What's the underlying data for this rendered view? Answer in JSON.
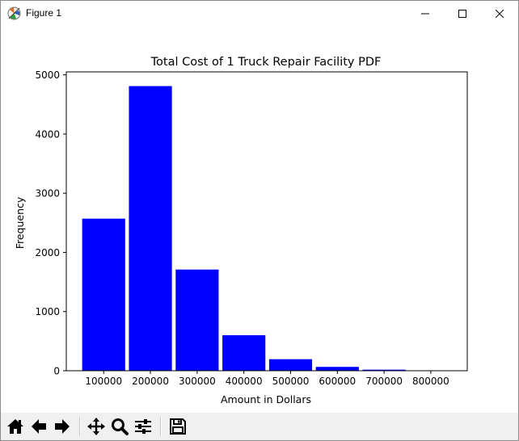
{
  "window": {
    "title": "Figure 1",
    "icon": "matplotlib-figure-icon",
    "controls": [
      "minimize-icon",
      "maximize-icon",
      "close-icon"
    ]
  },
  "toolbar": {
    "buttons": [
      {
        "name": "home-button",
        "icon": "home-icon"
      },
      {
        "name": "back-button",
        "icon": "arrow-left-icon"
      },
      {
        "name": "forward-button",
        "icon": "arrow-right-icon"
      },
      {
        "name": "pan-button",
        "icon": "move-arrows-icon"
      },
      {
        "name": "zoom-button",
        "icon": "magnifier-icon"
      },
      {
        "name": "configure-subplots-button",
        "icon": "sliders-icon"
      },
      {
        "name": "save-button",
        "icon": "floppy-disk-icon"
      }
    ]
  },
  "chart_data": {
    "type": "bar",
    "title": "Total Cost of 1 Truck Repair Facility PDF",
    "xlabel": "Amount in Dollars",
    "ylabel": "Frequency",
    "bar_color": "#0000ff",
    "bin_width": 50000,
    "bins": [
      {
        "center": 100000,
        "value": 2570
      },
      {
        "center": 200000,
        "value": 4810
      },
      {
        "center": 300000,
        "value": 1710
      },
      {
        "center": 400000,
        "value": 600
      },
      {
        "center": 500000,
        "value": 195
      },
      {
        "center": 600000,
        "value": 65
      },
      {
        "center": 700000,
        "value": 18
      },
      {
        "center": 800000,
        "value": 5
      }
    ],
    "xlim": [
      20000,
      878000
    ],
    "ylim": [
      0,
      5050
    ],
    "xticks": [
      "100000",
      "200000",
      "300000",
      "400000",
      "500000",
      "600000",
      "700000",
      "800000"
    ],
    "yticks": [
      "0",
      "1000",
      "2000",
      "3000",
      "4000",
      "5000"
    ],
    "grid": false,
    "legend": "none"
  }
}
